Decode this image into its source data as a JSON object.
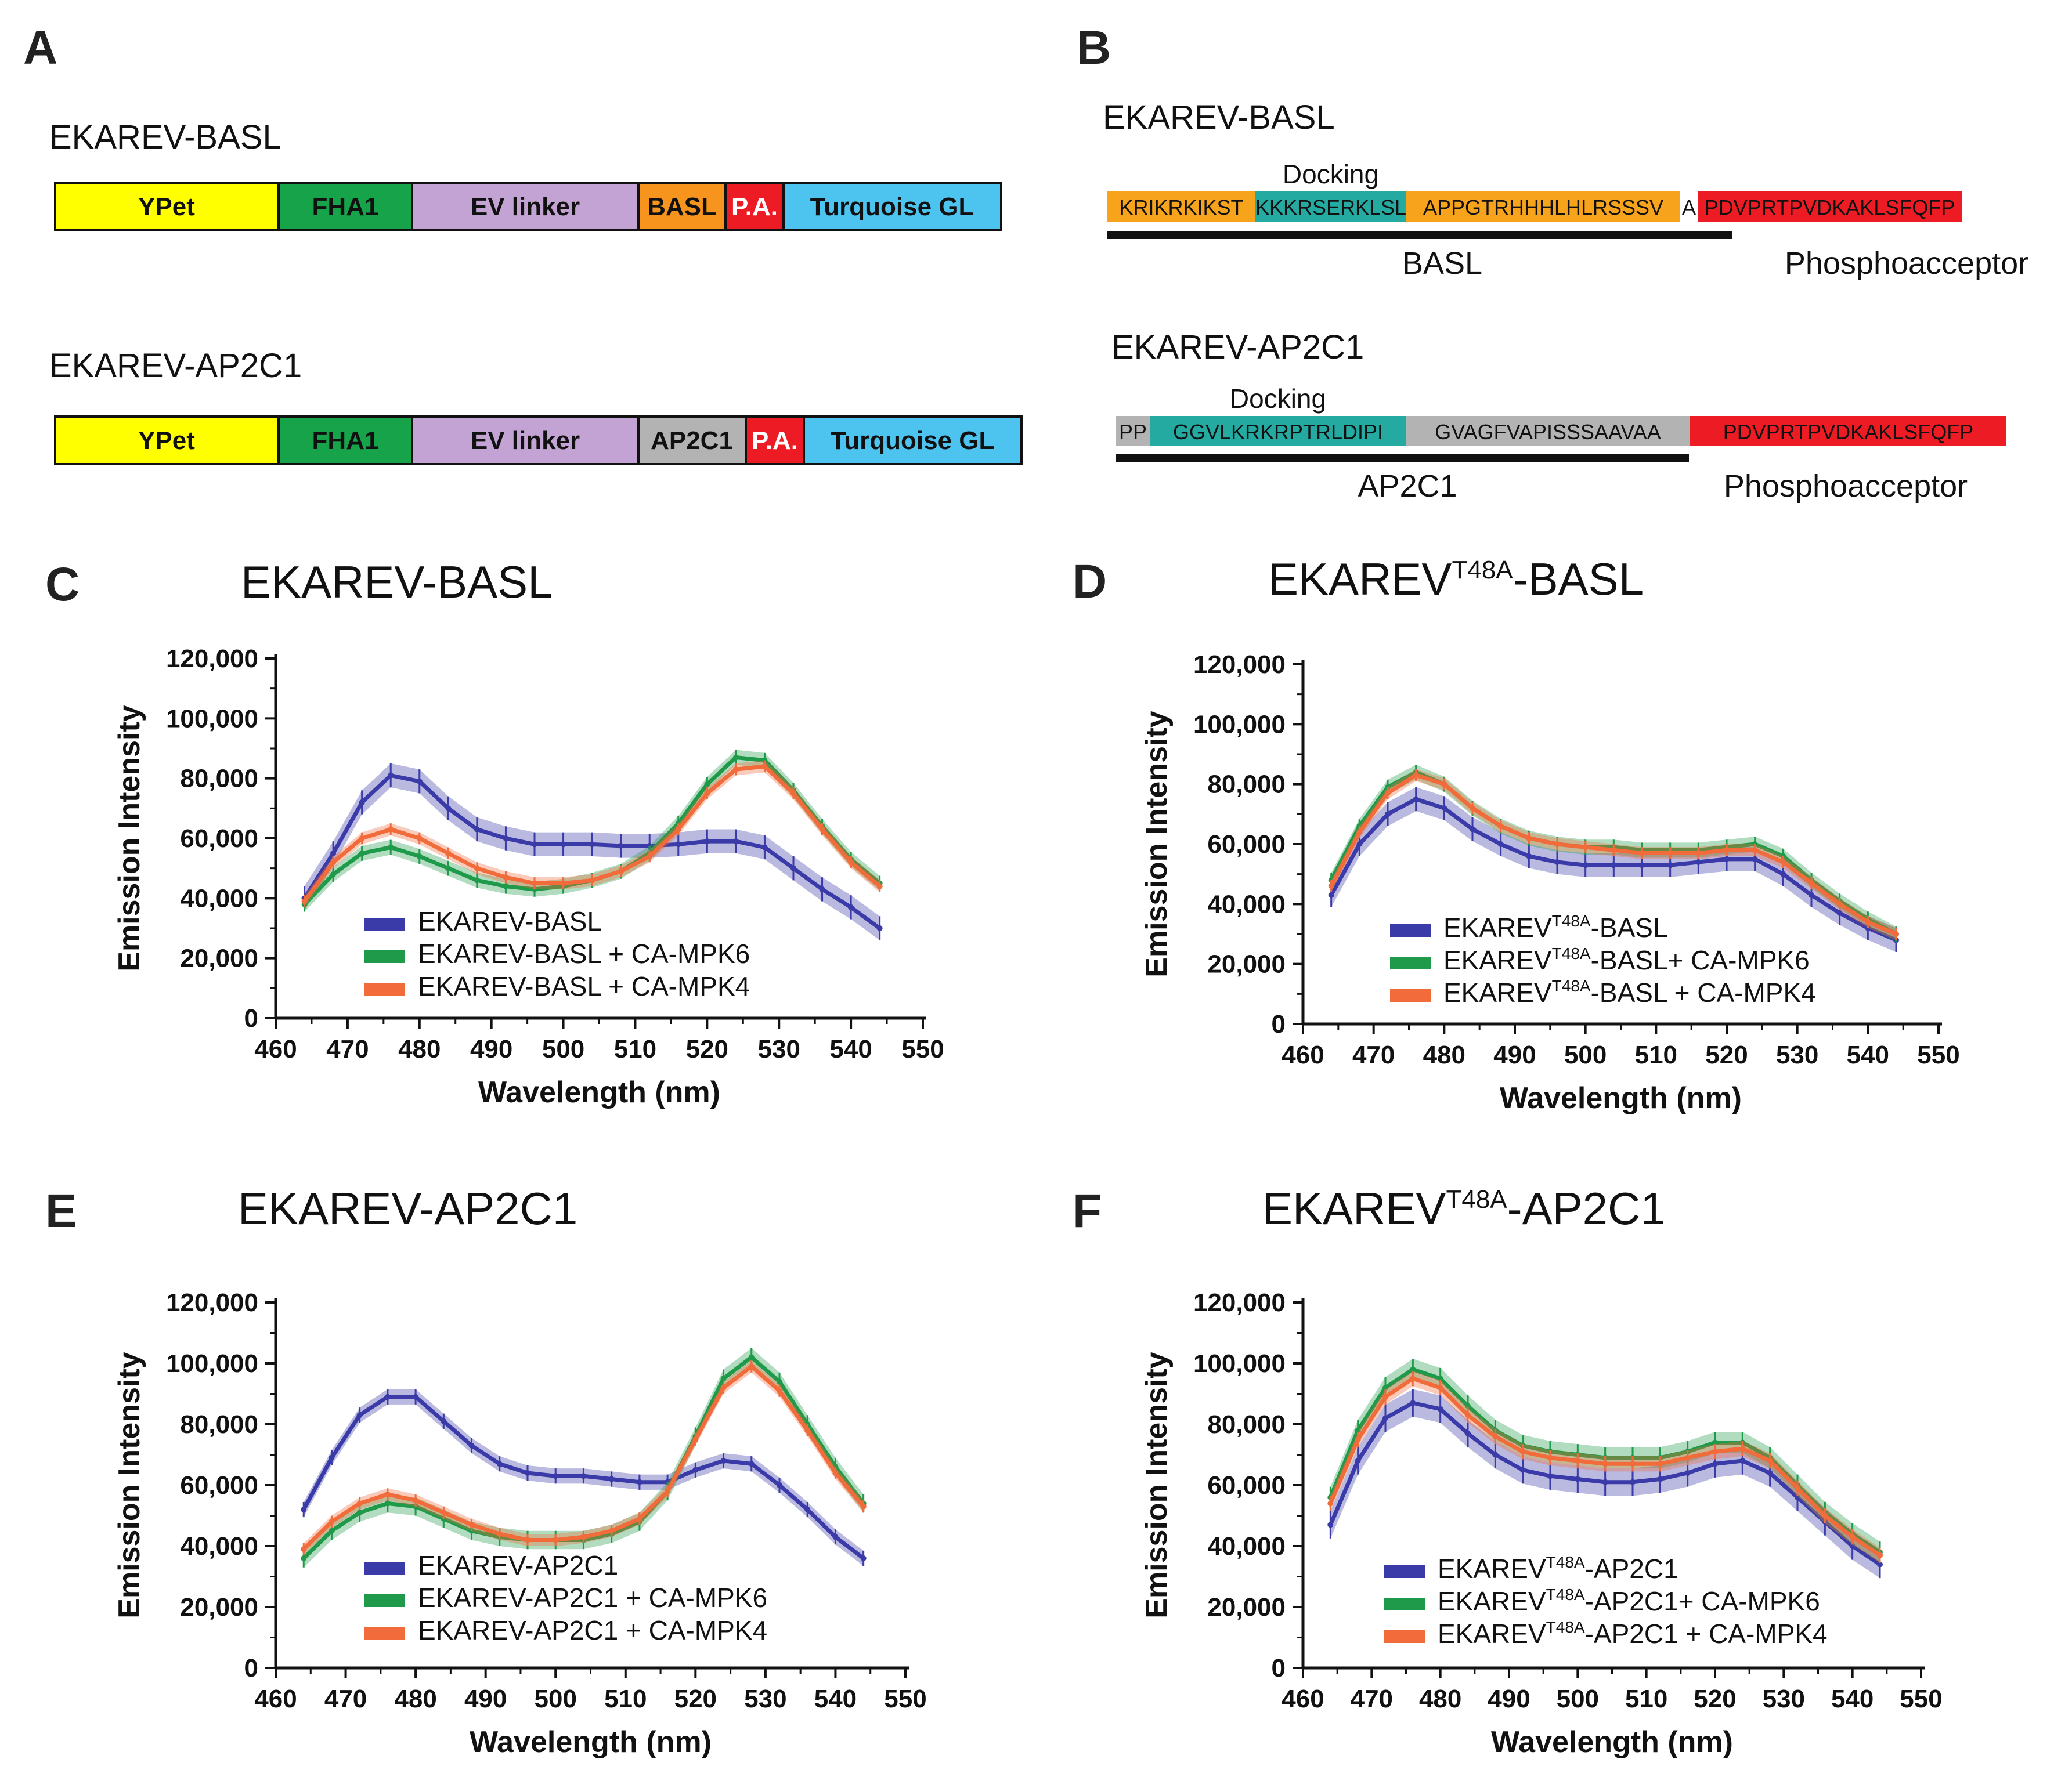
{
  "panels": {
    "A": {
      "label": "A",
      "constructs": [
        {
          "name": "EKAREV-BASL",
          "segments": [
            {
              "label": "YPet",
              "color": "#ffff00"
            },
            {
              "label": "FHA1",
              "color": "#16a34a"
            },
            {
              "label": "EV linker",
              "color": "#c3a3d3"
            },
            {
              "label": "BASL",
              "color": "#f7941d"
            },
            {
              "label": "P.A.",
              "color": "#ed1c24"
            },
            {
              "label": "Turquoise GL",
              "color": "#4dc3f0"
            }
          ]
        },
        {
          "name": "EKAREV-AP2C1",
          "segments": [
            {
              "label": "YPet",
              "color": "#ffff00"
            },
            {
              "label": "FHA1",
              "color": "#16a34a"
            },
            {
              "label": "EV linker",
              "color": "#c3a3d3"
            },
            {
              "label": "AP2C1",
              "color": "#b3b3b3"
            },
            {
              "label": "P.A.",
              "color": "#ed1c24"
            },
            {
              "label": "Turquoise GL",
              "color": "#4dc3f0"
            }
          ]
        }
      ]
    },
    "B": {
      "label": "B",
      "sequences": [
        {
          "name": "EKAREV-BASL",
          "docking_label": "Docking",
          "parts": [
            {
              "text": "KRIKRKIKST",
              "color": "#f7a31c"
            },
            {
              "text": "KKKRSERKLSL",
              "color": "#25aaa2"
            },
            {
              "text": "APPGTRHHHLHLRSSSV",
              "color": "#f7a31c"
            },
            {
              "text": "A",
              "color": "#ffffff"
            },
            {
              "text": "PDVPRTPVDKAKLSFQFP",
              "color": "#ed1c24"
            }
          ],
          "underline_label": "BASL",
          "phospho_label": "Phosphoacceptor"
        },
        {
          "name": "EKAREV-AP2C1",
          "docking_label": "Docking",
          "parts": [
            {
              "text": "PP",
              "color": "#b3b3b3"
            },
            {
              "text": "GGVLKRKRPTRLDIPI",
              "color": "#25aaa2"
            },
            {
              "text": "GVAGFVAPISSSAAVAA",
              "color": "#b3b3b3"
            },
            {
              "text": "PDVPRTPVDKAKLSFQFP",
              "color": "#ed1c24"
            }
          ],
          "underline_label": "AP2C1",
          "phospho_label": "Phosphoacceptor"
        }
      ]
    }
  },
  "colors": {
    "blue": "#3a3aa8",
    "green": "#1f9a4a",
    "orange": "#f26b3a"
  },
  "chart_data": [
    {
      "panel": "C",
      "type": "line",
      "title": "EKAREV-BASL",
      "xlabel": "Wavelength (nm)",
      "ylabel": "Emission Intensity",
      "xlim": [
        460,
        550
      ],
      "ylim": [
        0,
        120000
      ],
      "x_ticks": [
        "460",
        "470",
        "480",
        "490",
        "500",
        "510",
        "520",
        "530",
        "540",
        "550"
      ],
      "y_ticks": [
        "0",
        "20,000",
        "40,000",
        "60,000",
        "80,000",
        "100,000",
        "120,000"
      ],
      "x": [
        464,
        468,
        472,
        476,
        480,
        484,
        488,
        492,
        496,
        500,
        504,
        508,
        512,
        516,
        520,
        524,
        528,
        532,
        536,
        540,
        544
      ],
      "series": [
        {
          "name": "EKAREV-BASL",
          "color": "#3a3aa8",
          "err": 4000,
          "values": [
            40000,
            55000,
            72000,
            81000,
            79000,
            70000,
            63000,
            60000,
            58000,
            58000,
            58000,
            57500,
            57500,
            58000,
            59000,
            59000,
            57000,
            50000,
            43000,
            37000,
            30000
          ]
        },
        {
          "name": "EKAREV-BASL + CA-MPK6",
          "color": "#1f9a4a",
          "err": 2500,
          "values": [
            38000,
            48000,
            55000,
            57000,
            54000,
            50000,
            46000,
            44000,
            43000,
            44000,
            46000,
            49000,
            55000,
            65000,
            78000,
            87000,
            86000,
            76000,
            64000,
            53000,
            45000
          ]
        },
        {
          "name": "EKAREV-BASL + CA-MPK4",
          "color": "#f26b3a",
          "err": 2000,
          "values": [
            39000,
            52000,
            60000,
            63000,
            60000,
            55000,
            50000,
            47000,
            45000,
            45000,
            46000,
            49000,
            54000,
            63000,
            75000,
            83000,
            84000,
            75000,
            63000,
            52000,
            44000
          ]
        }
      ]
    },
    {
      "panel": "D",
      "type": "line",
      "title_main": "EKAREV",
      "title_sup": "T48A",
      "title_rest": "-BASL",
      "xlabel": "Wavelength (nm)",
      "ylabel": "Emission Intensity",
      "xlim": [
        460,
        550
      ],
      "ylim": [
        0,
        120000
      ],
      "x_ticks": [
        "460",
        "470",
        "480",
        "490",
        "500",
        "510",
        "520",
        "530",
        "540",
        "550"
      ],
      "y_ticks": [
        "0",
        "20,000",
        "40,000",
        "60,000",
        "80,000",
        "100,000",
        "120,000"
      ],
      "x": [
        464,
        468,
        472,
        476,
        480,
        484,
        488,
        492,
        496,
        500,
        504,
        508,
        512,
        516,
        520,
        524,
        528,
        532,
        536,
        540,
        544
      ],
      "legend_sup": "T48A",
      "series": [
        {
          "name_main": "EKAREV",
          "name_rest": "-BASL",
          "color": "#3a3aa8",
          "err": 4000,
          "values": [
            43000,
            60000,
            70000,
            75000,
            72000,
            65000,
            60000,
            56000,
            54000,
            53000,
            53000,
            53000,
            53000,
            54000,
            55000,
            55000,
            50000,
            43000,
            37000,
            32000,
            28000
          ]
        },
        {
          "name_main": "EKAREV",
          "name_rest": "-BASL+ CA-MPK6",
          "color": "#1f9a4a",
          "err": 2500,
          "values": [
            48000,
            66000,
            79000,
            84000,
            80000,
            72000,
            66000,
            62000,
            60000,
            59000,
            59000,
            58000,
            58000,
            58000,
            59000,
            60000,
            56000,
            48000,
            41000,
            35000,
            30000
          ]
        },
        {
          "name_main": "EKAREV",
          "name_rest": "-BASL + CA-MPK4",
          "color": "#f26b3a",
          "err": 2000,
          "values": [
            46000,
            64000,
            77000,
            83000,
            80000,
            72000,
            66000,
            62000,
            60000,
            59000,
            58000,
            57000,
            57000,
            57000,
            58000,
            58000,
            54000,
            47000,
            40000,
            34000,
            30000
          ]
        }
      ]
    },
    {
      "panel": "E",
      "type": "line",
      "title": "EKAREV-AP2C1",
      "xlabel": "Wavelength (nm)",
      "ylabel": "Emission Intensity",
      "xlim": [
        460,
        550
      ],
      "ylim": [
        0,
        120000
      ],
      "x_ticks": [
        "460",
        "470",
        "480",
        "490",
        "500",
        "510",
        "520",
        "530",
        "540",
        "550"
      ],
      "y_ticks": [
        "0",
        "20,000",
        "40,000",
        "60,000",
        "80,000",
        "100,000",
        "120,000"
      ],
      "x": [
        464,
        468,
        472,
        476,
        480,
        484,
        488,
        492,
        496,
        500,
        504,
        508,
        512,
        516,
        520,
        524,
        528,
        532,
        536,
        540,
        544
      ],
      "series": [
        {
          "name": "EKAREV-AP2C1",
          "color": "#3a3aa8",
          "err": 2500,
          "values": [
            52000,
            69000,
            83000,
            89000,
            89000,
            81000,
            73000,
            67000,
            64000,
            63000,
            63000,
            62000,
            61000,
            61000,
            65000,
            68000,
            67000,
            60000,
            52000,
            43000,
            36000
          ]
        },
        {
          "name": "EKAREV-AP2C1 + CA-MPK6",
          "color": "#1f9a4a",
          "err": 3000,
          "values": [
            36000,
            45000,
            51000,
            54000,
            53000,
            49000,
            45000,
            43000,
            42000,
            42000,
            42000,
            44000,
            48000,
            58000,
            76000,
            95000,
            102000,
            94000,
            80000,
            66000,
            54000
          ]
        },
        {
          "name": "EKAREV-AP2C1 + CA-MPK4",
          "color": "#f26b3a",
          "err": 2000,
          "values": [
            39000,
            48000,
            54000,
            57000,
            55000,
            51000,
            47000,
            44000,
            42000,
            42000,
            43000,
            45000,
            49000,
            58000,
            75000,
            92000,
            99000,
            91000,
            78000,
            64000,
            53000
          ]
        }
      ]
    },
    {
      "panel": "F",
      "type": "line",
      "title_main": "EKAREV",
      "title_sup": "T48A",
      "title_rest": "-AP2C1",
      "xlabel": "Wavelength (nm)",
      "ylabel": "Emission Intensity",
      "xlim": [
        460,
        550
      ],
      "ylim": [
        0,
        120000
      ],
      "x_ticks": [
        "460",
        "470",
        "480",
        "490",
        "500",
        "510",
        "520",
        "530",
        "540",
        "550"
      ],
      "y_ticks": [
        "0",
        "20,000",
        "40,000",
        "60,000",
        "80,000",
        "100,000",
        "120,000"
      ],
      "x": [
        464,
        468,
        472,
        476,
        480,
        484,
        488,
        492,
        496,
        500,
        504,
        508,
        512,
        516,
        520,
        524,
        528,
        532,
        536,
        540,
        544
      ],
      "legend_sup": "T48A",
      "series": [
        {
          "name_main": "EKAREV",
          "name_rest": "-AP2C1",
          "color": "#3a3aa8",
          "err": 4500,
          "values": [
            47000,
            68000,
            82000,
            87000,
            85000,
            77000,
            70000,
            65000,
            63000,
            62000,
            61000,
            61000,
            62000,
            64000,
            67000,
            68000,
            64000,
            56000,
            48000,
            40000,
            34000
          ]
        },
        {
          "name_main": "EKAREV",
          "name_rest": "-AP2C1+ CA-MPK6",
          "color": "#1f9a4a",
          "err": 3500,
          "values": [
            56000,
            78000,
            92000,
            98000,
            95000,
            86000,
            78000,
            73000,
            71000,
            70000,
            69000,
            69000,
            69000,
            71000,
            74000,
            74000,
            69000,
            60000,
            51000,
            44000,
            38000
          ]
        },
        {
          "name_main": "EKAREV",
          "name_rest": "-AP2C1 + CA-MPK4",
          "color": "#f26b3a",
          "err": 2500,
          "values": [
            54000,
            75000,
            89000,
            95000,
            92000,
            83000,
            76000,
            71000,
            69000,
            68000,
            67000,
            67000,
            67000,
            69000,
            71000,
            72000,
            68000,
            59000,
            50000,
            43000,
            37000
          ]
        }
      ]
    }
  ]
}
